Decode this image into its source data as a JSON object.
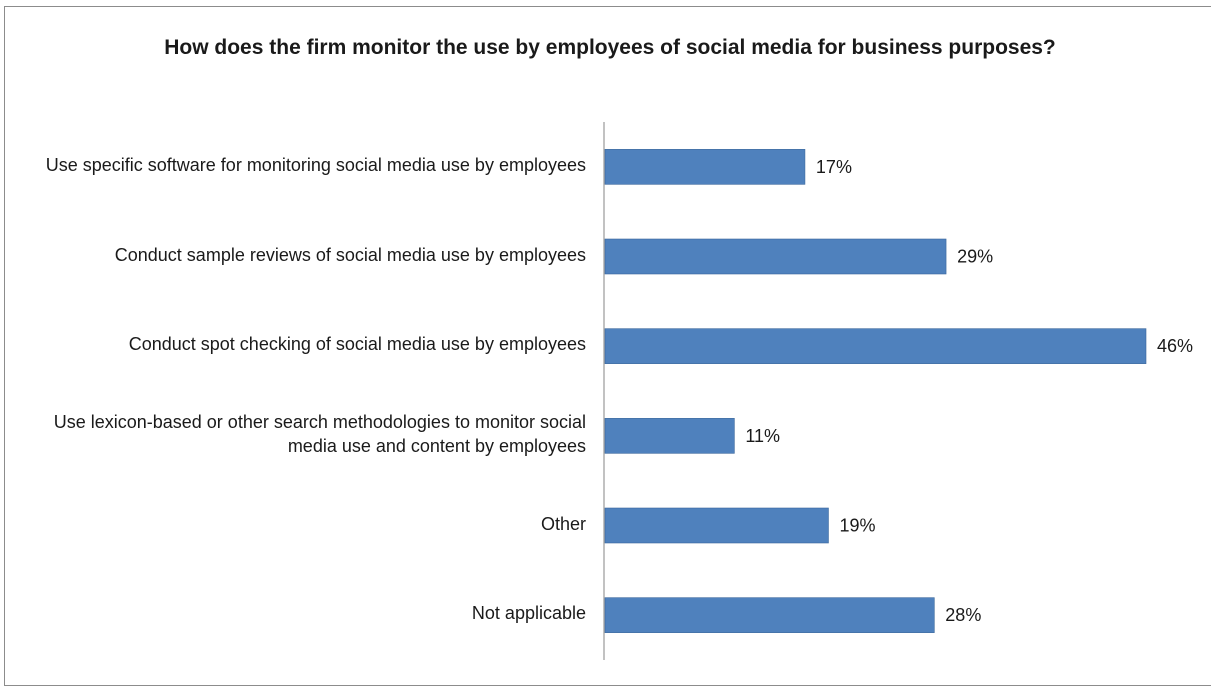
{
  "chart_data": {
    "type": "bar",
    "orientation": "horizontal",
    "title": "How does the firm monitor the use by employees of social media for business purposes?",
    "categories": [
      "Use specific software for monitoring social media use by employees",
      "Conduct sample reviews of social media use by employees",
      "Conduct spot checking of social media use by employees",
      "Use lexicon-based or other search methodologies to monitor social media use and content by employees",
      "Other",
      "Not applicable"
    ],
    "values": [
      17,
      29,
      46,
      11,
      19,
      28
    ],
    "value_labels": [
      "17%",
      "29%",
      "46%",
      "11%",
      "19%",
      "28%"
    ],
    "xlim": [
      0,
      46
    ],
    "bar_color": "#4f81bd",
    "bar_edge_color": "#3a679c",
    "axis_color": "#868686",
    "grid": false,
    "legend": "none"
  }
}
